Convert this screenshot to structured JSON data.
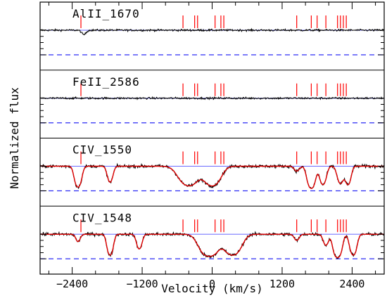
{
  "chart_data": {
    "type": "line",
    "xlabel": "Velocity (km/s)",
    "ylabel": "Normalized flux",
    "xlim": [
      -2950,
      2950
    ],
    "x_ticks": [
      -2400,
      -1200,
      0,
      1200,
      2400
    ],
    "panels": [
      {
        "name": "AlII_1670",
        "has_fit": false,
        "component_velocities": [
          -2250,
          -500,
          -300,
          -250,
          50,
          150,
          200,
          1450,
          1700,
          1800,
          1950,
          2150,
          2200,
          2250,
          2300
        ],
        "absorption_features": [
          {
            "v": -2200,
            "depth": 0.18,
            "width": 35
          }
        ]
      },
      {
        "name": "FeII_2586",
        "has_fit": false,
        "component_velocities": [
          -2250,
          -500,
          -300,
          -250,
          50,
          150,
          200,
          1450,
          1700,
          1800,
          1950,
          2150,
          2200,
          2250,
          2300
        ],
        "absorption_features": []
      },
      {
        "name": "CIV_1550",
        "has_fit": true,
        "component_velocities": [
          -2250,
          -500,
          -300,
          -250,
          50,
          150,
          200,
          1450,
          1700,
          1800,
          1950,
          2150,
          2200,
          2250,
          2300
        ],
        "absorption_features": [
          {
            "v": -2300,
            "depth": 0.85,
            "width": 45
          },
          {
            "v": -1750,
            "depth": 0.65,
            "width": 40
          },
          {
            "v": -400,
            "depth": 0.8,
            "width": 130
          },
          {
            "v": 0,
            "depth": 0.8,
            "width": 110
          },
          {
            "v": 1450,
            "depth": 0.2,
            "width": 40
          },
          {
            "v": 1700,
            "depth": 0.9,
            "width": 50
          },
          {
            "v": 1900,
            "depth": 0.75,
            "width": 45
          },
          {
            "v": 2200,
            "depth": 0.7,
            "width": 45
          },
          {
            "v": 2330,
            "depth": 0.75,
            "width": 40
          }
        ]
      },
      {
        "name": "CIV_1548",
        "has_fit": true,
        "component_velocities": [
          -2250,
          -500,
          -300,
          -250,
          50,
          150,
          200,
          1450,
          1700,
          1800,
          1950,
          2150,
          2200,
          2250,
          2300
        ],
        "absorption_features": [
          {
            "v": -2300,
            "depth": 0.3,
            "width": 35
          },
          {
            "v": -1750,
            "depth": 0.85,
            "width": 40
          },
          {
            "v": -1250,
            "depth": 0.6,
            "width": 40
          },
          {
            "v": -50,
            "depth": 0.9,
            "width": 120
          },
          {
            "v": 350,
            "depth": 0.85,
            "width": 110
          },
          {
            "v": 1450,
            "depth": 0.25,
            "width": 40
          },
          {
            "v": 1950,
            "depth": 0.45,
            "width": 40
          },
          {
            "v": 2150,
            "depth": 0.95,
            "width": 50
          },
          {
            "v": 2420,
            "depth": 0.85,
            "width": 45
          }
        ]
      }
    ]
  }
}
